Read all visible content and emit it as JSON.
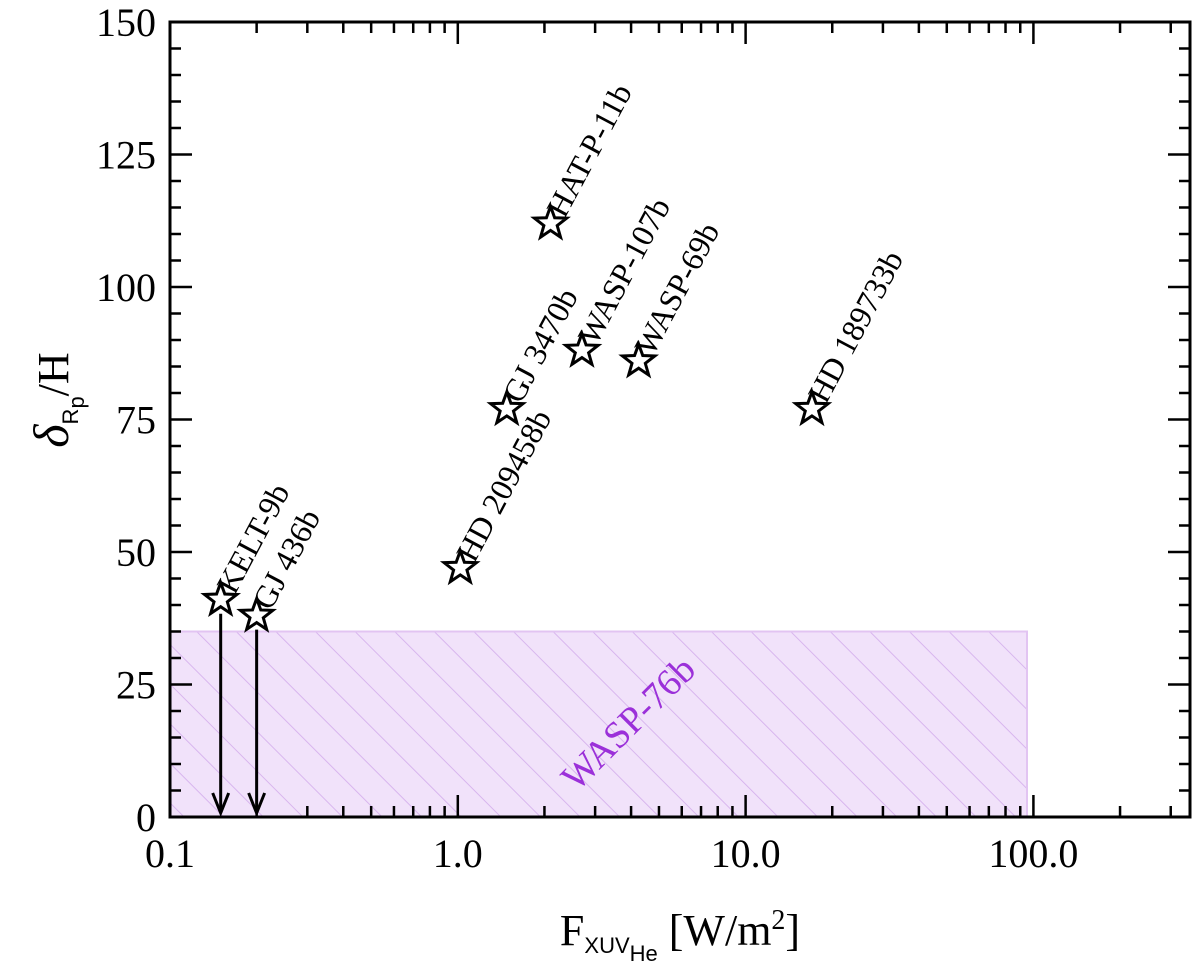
{
  "chart_data": {
    "type": "scatter",
    "title": "",
    "xlabel": {
      "main": "F",
      "sub_main": "XUV",
      "sub_sub": "He",
      "unit_left": " [W/m",
      "unit_sup": "2",
      "unit_right": "]"
    },
    "ylabel": {
      "main": "δ",
      "sub_main": "R",
      "sub_sub": "p",
      "rest": "/H"
    },
    "xscale": "log",
    "xlim": [
      0.1,
      350
    ],
    "ylim": [
      0,
      150
    ],
    "x_ticks": [
      0.1,
      1.0,
      10.0,
      100.0
    ],
    "x_tick_labels": [
      "0.1",
      "1.0",
      "10.0",
      "100.0"
    ],
    "y_ticks": [
      0,
      25,
      50,
      75,
      100,
      125,
      150
    ],
    "y_tick_labels": [
      "0",
      "25",
      "50",
      "75",
      "100",
      "125",
      "150"
    ],
    "marker": "open-star",
    "points": [
      {
        "label": "KELT-9b",
        "x": 0.15,
        "y": 41,
        "upper_limit": true
      },
      {
        "label": "GJ 436b",
        "x": 0.2,
        "y": 38,
        "upper_limit": true
      },
      {
        "label": "HD 209458b",
        "x": 1.02,
        "y": 47,
        "upper_limit": false
      },
      {
        "label": "GJ 3470b",
        "x": 1.48,
        "y": 77,
        "upper_limit": false
      },
      {
        "label": "HAT-P-11b",
        "x": 2.1,
        "y": 112,
        "upper_limit": false
      },
      {
        "label": "WASP-107b",
        "x": 2.7,
        "y": 88,
        "upper_limit": false
      },
      {
        "label": "WASP-69b",
        "x": 4.25,
        "y": 86,
        "upper_limit": false
      },
      {
        "label": "HD 189733b",
        "x": 17.0,
        "y": 77,
        "upper_limit": false
      }
    ],
    "region": {
      "label": "WASP-76b",
      "x_range": [
        0.1,
        95
      ],
      "y_range": [
        0,
        35
      ],
      "color": "#9b30d9",
      "fill": "#f1e2fa"
    },
    "grid": false,
    "legend": "none"
  }
}
